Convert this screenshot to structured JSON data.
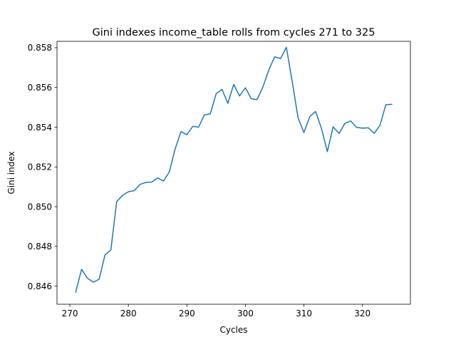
{
  "chart_data": {
    "type": "line",
    "title": "Gini indexes income_table rolls from cycles 271 to 325",
    "xlabel": "Cycles",
    "ylabel": "Gini index",
    "xlim": [
      267.8,
      328.2
    ],
    "ylim": [
      0.84509,
      0.85832
    ],
    "x_ticks": [
      270,
      280,
      290,
      300,
      310,
      320
    ],
    "x_tick_labels": [
      "270",
      "280",
      "290",
      "300",
      "310",
      "320"
    ],
    "y_ticks": [
      0.846,
      0.848,
      0.85,
      0.852,
      0.854,
      0.856,
      0.858
    ],
    "y_tick_labels": [
      "0.846",
      "0.848",
      "0.850",
      "0.852",
      "0.854",
      "0.856",
      "0.858"
    ],
    "grid": false,
    "series": [
      {
        "color": "#1f77b4",
        "x": [
          271,
          272,
          273,
          274,
          275,
          276,
          277,
          278,
          279,
          280,
          281,
          282,
          283,
          284,
          285,
          286,
          287,
          288,
          289,
          290,
          291,
          292,
          293,
          294,
          295,
          296,
          297,
          298,
          299,
          300,
          301,
          302,
          303,
          304,
          305,
          306,
          307,
          308,
          309,
          310,
          311,
          312,
          313,
          314,
          315,
          316,
          317,
          318,
          319,
          320,
          321,
          322,
          323,
          324,
          325
        ],
        "y": [
          0.8457,
          0.84685,
          0.8464,
          0.8462,
          0.84635,
          0.84757,
          0.84782,
          0.85025,
          0.85057,
          0.85075,
          0.85081,
          0.85112,
          0.85122,
          0.85124,
          0.85145,
          0.85129,
          0.85175,
          0.85292,
          0.85378,
          0.85362,
          0.85404,
          0.854,
          0.85462,
          0.85467,
          0.85568,
          0.8559,
          0.8552,
          0.85615,
          0.85557,
          0.85598,
          0.85543,
          0.85539,
          0.85603,
          0.85688,
          0.85754,
          0.85745,
          0.85802,
          0.8563,
          0.85447,
          0.85373,
          0.85453,
          0.85479,
          0.85393,
          0.85277,
          0.85402,
          0.85368,
          0.85419,
          0.85431,
          0.85399,
          0.85395,
          0.85397,
          0.85369,
          0.85409,
          0.85513,
          0.85515
        ]
      }
    ]
  }
}
